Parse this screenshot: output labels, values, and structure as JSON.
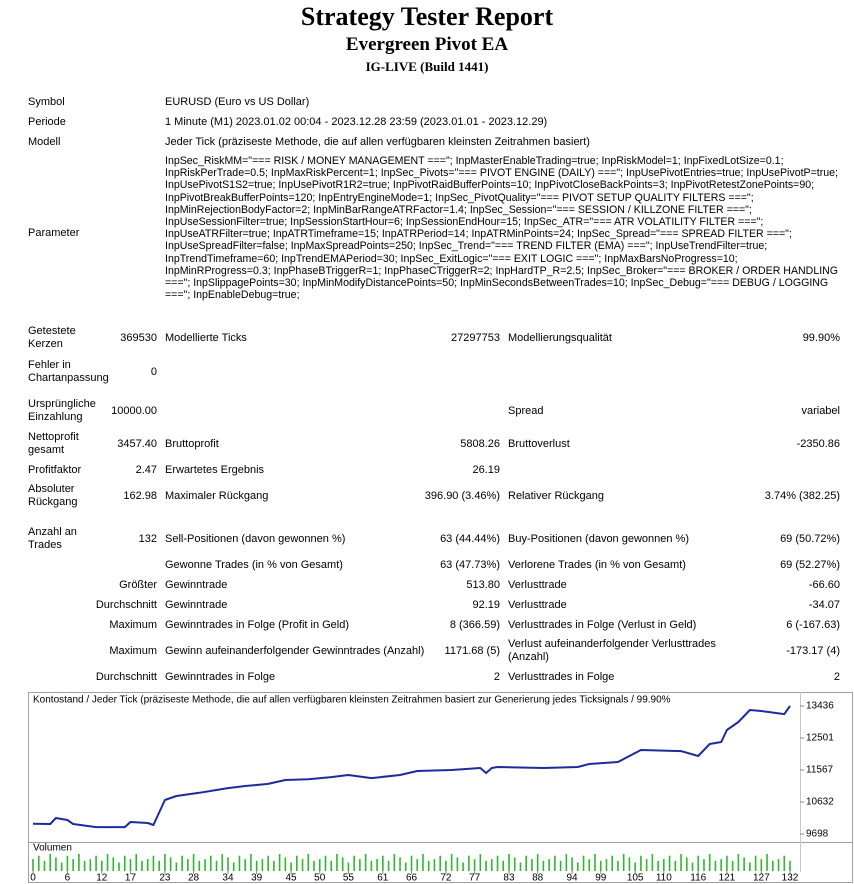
{
  "header": {
    "title": "Strategy Tester Report",
    "subtitle": "Evergreen Pivot EA",
    "build": "IG-LIVE (Build 1441)"
  },
  "info": {
    "rows": [
      {
        "label": "Symbol",
        "value": "EURUSD (Euro vs US Dollar)"
      },
      {
        "label": "Periode",
        "value": "1 Minute (M1) 2023.01.02 00:04 - 2023.12.28 23:59 (2023.01.01 - 2023.12.29)"
      },
      {
        "label": "Modell",
        "value": "Jeder Tick (präziseste Methode, die auf allen verfügbaren kleinsten Zeitrahmen basiert)"
      },
      {
        "label": "Parameter",
        "value": "InpSec_RiskMM=\"=== RISK / MONEY MANAGEMENT ===\"; InpMasterEnableTrading=true; InpRiskModel=1; InpFixedLotSize=0.1; InpRiskPerTrade=0.5; InpMaxRiskPercent=1; InpSec_Pivots=\"=== PIVOT ENGINE (DAILY) ===\"; InpUsePivotEntries=true; InpUsePivotP=true; InpUsePivotS1S2=true; InpUsePivotR1R2=true; InpPivotRaidBufferPoints=10; InpPivotCloseBackPoints=3; InpPivotRetestZonePoints=90; InpPivotBreakBufferPoints=120; InpEntryEngineMode=1; InpSec_PivotQuality=\"=== PIVOT SETUP QUALITY FILTERS ===\"; InpMinRejectionBodyFactor=2; InpMinBarRangeATRFactor=1.4; InpSec_Session=\"=== SESSION / KILLZONE FILTER ===\"; InpUseSessionFilter=true; InpSessionStartHour=6; InpSessionEndHour=15; InpSec_ATR=\"=== ATR VOLATILITY FILTER ===\"; InpUseATRFilter=true; InpATRTimeframe=15; InpATRPeriod=14; InpATRMinPoints=24; InpSec_Spread=\"=== SPREAD FILTER ===\"; InpUseSpreadFilter=false; InpMaxSpreadPoints=250; InpSec_Trend=\"=== TREND FILTER (EMA) ===\"; InpUseTrendFilter=true; InpTrendTimeframe=60; InpTrendEMAPeriod=30; InpSec_ExitLogic=\"=== EXIT LOGIC ===\"; InpMaxBarsNoProgress=10; InpMinRProgress=0.3; InpPhaseBTriggerR=1; InpPhaseCTriggerR=2; InpHardTP_R=2.5; InpSec_Broker=\"=== BROKER / ORDER HANDLING ===\"; InpSlippagePoints=30; InpMinModifyDistancePoints=50; InpMinSecondsBetweenTrades=10; InpSec_Debug=\"=== DEBUG / LOGGING ===\"; InpEnableDebug=true;"
      }
    ]
  },
  "stats": {
    "rows": [
      {
        "l1": "Getestete Kerzen",
        "v1": "369530",
        "l2": "Modellierte Ticks",
        "v2": "27297753",
        "l3": "Modellierungsqualität",
        "v3": "99.90%"
      },
      {
        "l1": "Fehler in Chartanpassung",
        "v1": "0"
      },
      {
        "l1": "Ursprüngliche Einzahlung",
        "v1": "10000.00",
        "l3": "Spread",
        "v3": "variabel"
      },
      {
        "l1": "Nettoprofit gesamt",
        "v1": "3457.40",
        "l2": "Bruttoprofit",
        "v2": "5808.26",
        "l3": "Bruttoverlust",
        "v3": "-2350.86"
      },
      {
        "l1": "Profitfaktor",
        "v1": "2.47",
        "l2": "Erwartetes Ergebnis",
        "v2": "26.19"
      },
      {
        "l1": "Absoluter Rückgang",
        "v1": "162.98",
        "l2": "Maximaler Rückgang",
        "v2": "396.90 (3.46%)",
        "l3": "Relativer Rückgang",
        "v3": "3.74% (382.25)"
      },
      {
        "l1": "Anzahl an Trades",
        "v1": "132",
        "l2": "Sell-Positionen (davon gewonnen %)",
        "v2": "63 (44.44%)",
        "l3": "Buy-Positionen (davon gewonnen %)",
        "v3": "69 (50.72%)"
      },
      {
        "l2": "Gewonne Trades (in % von Gesamt)",
        "v2": "63 (47.73%)",
        "l3": "Verlorene Trades (in % von Gesamt)",
        "v3": "69 (52.27%)"
      },
      {
        "v1": "Größter",
        "l2": "Gewinntrade",
        "v2": "513.80",
        "l3": "Verlusttrade",
        "v3": "-66.60"
      },
      {
        "v1": "Durchschnitt",
        "l2": "Gewinntrade",
        "v2": "92.19",
        "l3": "Verlusttrade",
        "v3": "-34.07"
      },
      {
        "v1": "Maximum",
        "l2": "Gewinntrades in Folge (Profit in Geld)",
        "v2": "8 (366.59)",
        "l3": "Verlusttrades in Folge (Verlust in Geld)",
        "v3": "6 (-167.63)"
      },
      {
        "v1": "Maximum",
        "l2": "Gewinn aufeinanderfolgender Gewinntrades (Anzahl)",
        "v2": "1171.68 (5)",
        "l3": "Verlust aufeinanderfolgender Verlusttrades (Anzahl)",
        "v3": "-173.17 (4)"
      },
      {
        "v1": "Durchschnitt",
        "l2": "Gewinntrades in Folge",
        "v2": "2",
        "l3": "Verlusttrades in Folge",
        "v3": "2"
      }
    ]
  },
  "chart_data": [
    {
      "type": "line",
      "title": "Kontostand / Jeder Tick (präziseste Methode, die auf allen verfügbaren kleinsten Zeitrahmen basiert zur Generierung jedes Ticksignals / 99.90%",
      "x": [
        0,
        3,
        4,
        6,
        7,
        11,
        16,
        17,
        20,
        21,
        23,
        25,
        29,
        32,
        34,
        37,
        41,
        44,
        48,
        52,
        55,
        59,
        64,
        67,
        73,
        78,
        79,
        80,
        81,
        89,
        95,
        97,
        102,
        104,
        106,
        113,
        116,
        118,
        120,
        121,
        123,
        125,
        127,
        131,
        132
      ],
      "values": [
        10000,
        9990,
        10165,
        10107,
        9990,
        9900,
        9900,
        10048,
        10020,
        9960,
        10690,
        10808,
        10900,
        10983,
        11040,
        11100,
        11160,
        11275,
        11300,
        11360,
        11420,
        11330,
        11420,
        11538,
        11567,
        11625,
        11480,
        11625,
        11655,
        11625,
        11655,
        11742,
        11800,
        11975,
        12150,
        12120,
        11975,
        12326,
        12385,
        12735,
        12970,
        13319,
        13290,
        13200,
        13436
      ],
      "color": "#1c2c9c",
      "xlim": [
        0,
        132
      ],
      "ylim": [
        9523,
        13670
      ],
      "yticks": [
        13436,
        12501,
        11567,
        10632,
        9698
      ]
    },
    {
      "type": "bar",
      "title": "Volumen",
      "color": "#2eb82e",
      "xlim": [
        0,
        132
      ],
      "ylim": [
        0,
        1
      ],
      "xticks": [
        0,
        6,
        12,
        17,
        23,
        28,
        34,
        39,
        45,
        50,
        55,
        61,
        66,
        72,
        77,
        83,
        88,
        94,
        99,
        105,
        110,
        116,
        121,
        127,
        132
      ],
      "values": [
        0.7,
        0.9,
        0.6,
        1,
        0.8,
        0.5,
        0.9,
        0.7,
        1,
        0.6,
        0.7,
        0.9,
        0.6,
        1,
        0.8,
        0.5,
        0.9,
        0.7,
        1,
        0.6,
        0.7,
        0.9,
        0.6,
        1,
        0.8,
        0.5,
        0.9,
        0.7,
        1,
        0.6,
        0.7,
        0.9,
        0.6,
        1,
        0.8,
        0.5,
        0.9,
        0.7,
        1,
        0.6,
        0.7,
        0.9,
        0.6,
        1,
        0.8,
        0.5,
        0.9,
        0.7,
        1,
        0.6,
        0.7,
        0.9,
        0.6,
        1,
        0.8,
        0.5,
        0.9,
        0.7,
        1,
        0.6,
        0.7,
        0.9,
        0.6,
        1,
        0.8,
        0.5,
        0.9,
        0.7,
        1,
        0.6,
        0.7,
        0.9,
        0.6,
        1,
        0.8,
        0.5,
        0.9,
        0.7,
        1,
        0.6,
        0.7,
        0.9,
        0.6,
        1,
        0.8,
        0.5,
        0.9,
        0.7,
        1,
        0.6,
        0.7,
        0.9,
        0.6,
        1,
        0.8,
        0.5,
        0.9,
        0.7,
        1,
        0.6,
        0.7,
        0.9,
        0.6,
        1,
        0.8,
        0.5,
        0.9,
        0.7,
        1,
        0.6,
        0.7,
        0.9,
        0.6,
        1,
        0.8,
        0.5,
        0.9,
        0.7,
        1,
        0.6,
        0.7,
        0.9,
        0.6,
        1,
        0.8,
        0.5,
        0.9,
        0.7,
        1,
        0.6,
        0.7,
        0.9,
        0.6
      ]
    }
  ]
}
